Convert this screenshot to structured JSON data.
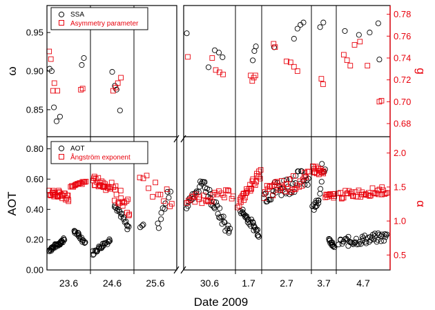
{
  "chart_data": {
    "type": "scatter",
    "xlabel": "Date 2009",
    "dates": [
      "23.6",
      "24.6",
      "25.6",
      "30.6",
      "1.7",
      "2.7",
      "3.7",
      "4.7"
    ],
    "colors": {
      "black": "#000000",
      "red": "#e8000b"
    },
    "top_panel": {
      "left_axis": {
        "label": "ω",
        "ylim": [
          0.815,
          0.985
        ],
        "ticks": [
          "0.85",
          "0.90",
          "0.95"
        ],
        "tick_values": [
          0.85,
          0.9,
          0.95
        ]
      },
      "right_axis": {
        "label": "g",
        "ylim": [
          0.668,
          0.788
        ],
        "ticks": [
          "0.68",
          "0.70",
          "0.72",
          "0.74",
          "0.76",
          "0.78"
        ],
        "tick_values": [
          0.68,
          0.7,
          0.72,
          0.74,
          0.76,
          0.78
        ]
      },
      "legend": {
        "position": "top-left",
        "entries": [
          {
            "label": "SSA",
            "marker": "circle",
            "color": "black"
          },
          {
            "label": "Asymmetry parameter",
            "marker": "square",
            "color": "red"
          }
        ]
      },
      "series": [
        {
          "axis": "left",
          "marker": "circle",
          "color": "black",
          "points": [
            {
              "day": 0,
              "x": 0.06,
              "y": 0.903
            },
            {
              "day": 0,
              "x": 0.11,
              "y": 0.9
            },
            {
              "day": 0,
              "x": 0.16,
              "y": 0.853
            },
            {
              "day": 0,
              "x": 0.22,
              "y": 0.835
            },
            {
              "day": 0,
              "x": 0.3,
              "y": 0.841
            },
            {
              "day": 0,
              "x": 0.8,
              "y": 0.908
            },
            {
              "day": 0,
              "x": 0.85,
              "y": 0.917
            },
            {
              "day": 1,
              "x": 0.5,
              "y": 0.899
            },
            {
              "day": 1,
              "x": 0.56,
              "y": 0.881
            },
            {
              "day": 1,
              "x": 0.6,
              "y": 0.876
            },
            {
              "day": 1,
              "x": 0.68,
              "y": 0.849
            },
            {
              "day": 3,
              "x": 0.06,
              "y": 0.949
            },
            {
              "day": 3,
              "x": 0.48,
              "y": 0.905
            },
            {
              "day": 3,
              "x": 0.6,
              "y": 0.927
            },
            {
              "day": 3,
              "x": 0.68,
              "y": 0.924
            },
            {
              "day": 3,
              "x": 0.75,
              "y": 0.918
            },
            {
              "day": 4,
              "x": 0.66,
              "y": 0.914
            },
            {
              "day": 4,
              "x": 0.72,
              "y": 0.926
            },
            {
              "day": 4,
              "x": 0.78,
              "y": 0.932
            },
            {
              "day": 5,
              "x": 0.25,
              "y": 0.931
            },
            {
              "day": 5,
              "x": 0.65,
              "y": 0.942
            },
            {
              "day": 5,
              "x": 0.72,
              "y": 0.955
            },
            {
              "day": 5,
              "x": 0.78,
              "y": 0.96
            },
            {
              "day": 5,
              "x": 0.84,
              "y": 0.963
            },
            {
              "day": 6,
              "x": 0.35,
              "y": 0.957
            },
            {
              "day": 6,
              "x": 0.48,
              "y": 0.963
            },
            {
              "day": 7,
              "x": 0.16,
              "y": 0.952
            },
            {
              "day": 7,
              "x": 0.42,
              "y": 0.947
            },
            {
              "day": 7,
              "x": 0.62,
              "y": 0.95
            },
            {
              "day": 7,
              "x": 0.78,
              "y": 0.962
            },
            {
              "day": 7,
              "x": 0.8,
              "y": 0.915
            }
          ]
        },
        {
          "axis": "right",
          "marker": "square",
          "color": "red",
          "points": [
            {
              "day": 0,
              "x": 0.05,
              "y": 0.746
            },
            {
              "day": 0,
              "x": 0.09,
              "y": 0.739
            },
            {
              "day": 0,
              "x": 0.14,
              "y": 0.71
            },
            {
              "day": 0,
              "x": 0.17,
              "y": 0.717
            },
            {
              "day": 0,
              "x": 0.24,
              "y": 0.71
            },
            {
              "day": 0,
              "x": 0.78,
              "y": 0.711
            },
            {
              "day": 0,
              "x": 0.82,
              "y": 0.712
            },
            {
              "day": 1,
              "x": 0.52,
              "y": 0.71
            },
            {
              "day": 1,
              "x": 0.58,
              "y": 0.713
            },
            {
              "day": 1,
              "x": 0.63,
              "y": 0.717
            },
            {
              "day": 1,
              "x": 0.7,
              "y": 0.722
            },
            {
              "day": 3,
              "x": 0.08,
              "y": 0.741
            },
            {
              "day": 3,
              "x": 0.55,
              "y": 0.74
            },
            {
              "day": 3,
              "x": 0.62,
              "y": 0.729
            },
            {
              "day": 3,
              "x": 0.69,
              "y": 0.727
            },
            {
              "day": 3,
              "x": 0.76,
              "y": 0.725
            },
            {
              "day": 4,
              "x": 0.58,
              "y": 0.724
            },
            {
              "day": 4,
              "x": 0.64,
              "y": 0.719
            },
            {
              "day": 4,
              "x": 0.7,
              "y": 0.722
            },
            {
              "day": 4,
              "x": 0.76,
              "y": 0.724
            },
            {
              "day": 5,
              "x": 0.24,
              "y": 0.753
            },
            {
              "day": 5,
              "x": 0.27,
              "y": 0.75
            },
            {
              "day": 5,
              "x": 0.5,
              "y": 0.737
            },
            {
              "day": 5,
              "x": 0.58,
              "y": 0.736
            },
            {
              "day": 5,
              "x": 0.65,
              "y": 0.732
            },
            {
              "day": 5,
              "x": 0.72,
              "y": 0.728
            },
            {
              "day": 6,
              "x": 0.4,
              "y": 0.721
            },
            {
              "day": 6,
              "x": 0.47,
              "y": 0.716
            },
            {
              "day": 7,
              "x": 0.14,
              "y": 0.743
            },
            {
              "day": 7,
              "x": 0.2,
              "y": 0.738
            },
            {
              "day": 7,
              "x": 0.26,
              "y": 0.733
            },
            {
              "day": 7,
              "x": 0.34,
              "y": 0.752
            },
            {
              "day": 7,
              "x": 0.44,
              "y": 0.755
            },
            {
              "day": 7,
              "x": 0.58,
              "y": 0.733
            },
            {
              "day": 7,
              "x": 0.8,
              "y": 0.7
            },
            {
              "day": 7,
              "x": 0.84,
              "y": 0.701
            }
          ]
        }
      ]
    },
    "bottom_panel": {
      "left_axis": {
        "label": "AOT",
        "ylim": [
          0.0,
          0.88
        ],
        "ticks": [
          "0.00",
          "0.20",
          "0.40",
          "0.60",
          "0.80"
        ],
        "tick_values": [
          0.0,
          0.2,
          0.4,
          0.6,
          0.8
        ]
      },
      "right_axis": {
        "label": "α",
        "ylim": [
          0.28,
          2.24
        ],
        "ticks": [
          "0.5",
          "1.0",
          "1.5",
          "2.0"
        ],
        "tick_values": [
          0.5,
          1.0,
          1.5,
          2.0
        ]
      },
      "legend": {
        "position": "top-left",
        "entries": [
          {
            "label": "AOT",
            "marker": "circle",
            "color": "black"
          },
          {
            "label": "Ångström exponent",
            "marker": "square",
            "color": "red"
          }
        ]
      },
      "series": [
        {
          "axis": "left",
          "marker": "circle",
          "color": "black",
          "clusters": [
            {
              "day": 0,
              "x0": 0.05,
              "x1": 0.4,
              "n": 32,
              "y0": 0.13,
              "y1": 0.2,
              "shape": "rise"
            },
            {
              "day": 0,
              "x0": 0.62,
              "x1": 0.88,
              "n": 18,
              "y0": 0.26,
              "y1": 0.18,
              "shape": "fall"
            },
            {
              "day": 1,
              "x0": 0.05,
              "x1": 0.45,
              "n": 24,
              "y0": 0.11,
              "y1": 0.2,
              "shape": "rise"
            },
            {
              "day": 1,
              "x0": 0.55,
              "x1": 0.88,
              "n": 18,
              "y0": 0.45,
              "y1": 0.26,
              "shape": "fall"
            },
            {
              "day": 2,
              "x0": 0.15,
              "x1": 0.22,
              "n": 3,
              "y0": 0.28,
              "y1": 0.3,
              "shape": "rise"
            },
            {
              "day": 2,
              "x0": 0.55,
              "x1": 0.85,
              "n": 10,
              "y0": 0.28,
              "y1": 0.54,
              "shape": "rise"
            },
            {
              "day": 3,
              "x0": 0.05,
              "x1": 0.4,
              "n": 16,
              "y0": 0.42,
              "y1": 0.6,
              "shape": "rise"
            },
            {
              "day": 3,
              "x0": 0.4,
              "x1": 0.9,
              "n": 30,
              "y0": 0.55,
              "y1": 0.24,
              "shape": "fall"
            },
            {
              "day": 4,
              "x0": 0.2,
              "x1": 0.9,
              "n": 30,
              "y0": 0.4,
              "y1": 0.24,
              "shape": "fall"
            },
            {
              "day": 5,
              "x0": 0.05,
              "x1": 0.95,
              "n": 40,
              "y0": 0.5,
              "y1": 0.62,
              "shape": "noisy"
            },
            {
              "day": 6,
              "x0": 0.05,
              "x1": 0.3,
              "n": 10,
              "y0": 0.42,
              "y1": 0.45,
              "shape": "noisy"
            },
            {
              "day": 6,
              "x0": 0.3,
              "x1": 0.55,
              "n": 8,
              "y0": 0.55,
              "y1": 0.77,
              "shape": "noisy"
            },
            {
              "day": 6,
              "x0": 0.7,
              "x1": 0.92,
              "n": 14,
              "y0": 0.2,
              "y1": 0.15,
              "shape": "fall"
            },
            {
              "day": 7,
              "x0": 0.05,
              "x1": 0.95,
              "n": 50,
              "y0": 0.18,
              "y1": 0.22,
              "shape": "noisy"
            }
          ]
        },
        {
          "axis": "right",
          "marker": "square",
          "color": "red",
          "clusters": [
            {
              "day": 0,
              "x0": 0.05,
              "x1": 0.5,
              "n": 30,
              "y0": 1.43,
              "y1": 1.35,
              "shape": "noisy"
            },
            {
              "day": 0,
              "x0": 0.55,
              "x1": 0.9,
              "n": 18,
              "y0": 1.5,
              "y1": 1.58,
              "shape": "rise"
            },
            {
              "day": 1,
              "x0": 0.05,
              "x1": 0.45,
              "n": 24,
              "y0": 1.6,
              "y1": 1.5,
              "shape": "noisy"
            },
            {
              "day": 1,
              "x0": 0.5,
              "x1": 0.9,
              "n": 20,
              "y0": 1.45,
              "y1": 1.2,
              "shape": "noisy"
            },
            {
              "day": 2,
              "x0": 0.15,
              "x1": 0.9,
              "n": 12,
              "y0": 1.58,
              "y1": 1.3,
              "shape": "noisy"
            },
            {
              "day": 3,
              "x0": 0.05,
              "x1": 0.95,
              "n": 28,
              "y0": 1.3,
              "y1": 1.4,
              "shape": "noisy"
            },
            {
              "day": 4,
              "x0": 0.1,
              "x1": 0.95,
              "n": 30,
              "y0": 1.25,
              "y1": 1.7,
              "shape": "rise"
            },
            {
              "day": 5,
              "x0": 0.05,
              "x1": 0.95,
              "n": 36,
              "y0": 1.42,
              "y1": 1.62,
              "shape": "noisy"
            },
            {
              "day": 6,
              "x0": 0.05,
              "x1": 0.5,
              "n": 16,
              "y0": 1.78,
              "y1": 1.7,
              "shape": "noisy"
            },
            {
              "day": 6,
              "x0": 0.55,
              "x1": 0.95,
              "n": 12,
              "y0": 1.35,
              "y1": 1.38,
              "shape": "noisy"
            },
            {
              "day": 7,
              "x0": 0.05,
              "x1": 0.95,
              "n": 40,
              "y0": 1.38,
              "y1": 1.45,
              "shape": "noisy"
            }
          ]
        }
      ]
    }
  }
}
